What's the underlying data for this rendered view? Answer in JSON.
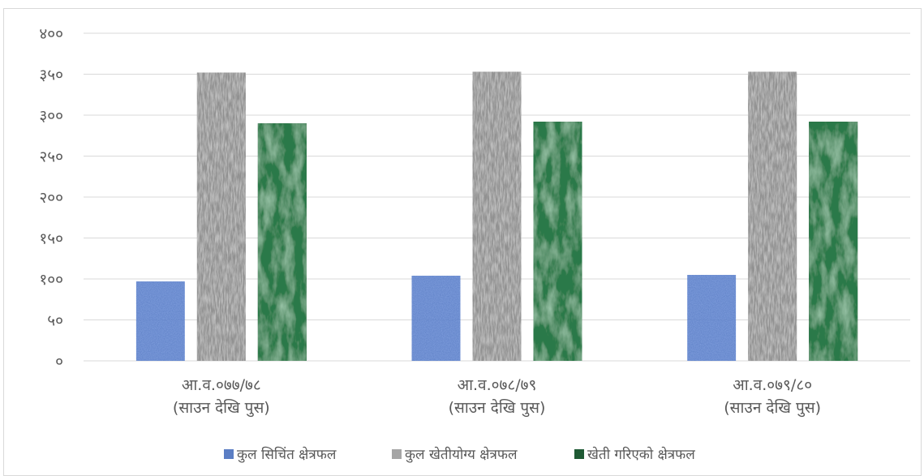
{
  "chart_data": {
    "type": "bar",
    "categories": [
      [
        "आ.व.०७७/७८",
        "(साउन देखि पुस)"
      ],
      [
        "आ.व.०७८/७९",
        "(साउन देखि पुस)"
      ],
      [
        "आ.व.०७९/८०",
        "(साउन देखि पुस)"
      ]
    ],
    "series": [
      {
        "name": "कुल सिचिंत क्षेत्रफल",
        "values": [
          97,
          104,
          105
        ],
        "color": "#5b7ec4"
      },
      {
        "name": "कुल खेतीयोग्य क्षेत्रफल",
        "values": [
          352,
          353,
          353
        ],
        "color": "#a5a5a5"
      },
      {
        "name": "खेती गरिएको क्षेत्रफल",
        "values": [
          290,
          292,
          292
        ],
        "color": "#1f5a34"
      }
    ],
    "ylim": [
      0,
      400
    ],
    "yticks": [
      {
        "value": 0,
        "label": "०"
      },
      {
        "value": 50,
        "label": "५०"
      },
      {
        "value": 100,
        "label": "१००"
      },
      {
        "value": 150,
        "label": "१५०"
      },
      {
        "value": 200,
        "label": "२००"
      },
      {
        "value": 250,
        "label": "२५०"
      },
      {
        "value": 300,
        "label": "३००"
      },
      {
        "value": 350,
        "label": "३५०"
      },
      {
        "value": 400,
        "label": "४००"
      }
    ],
    "grid": true,
    "legend": "bottom"
  }
}
